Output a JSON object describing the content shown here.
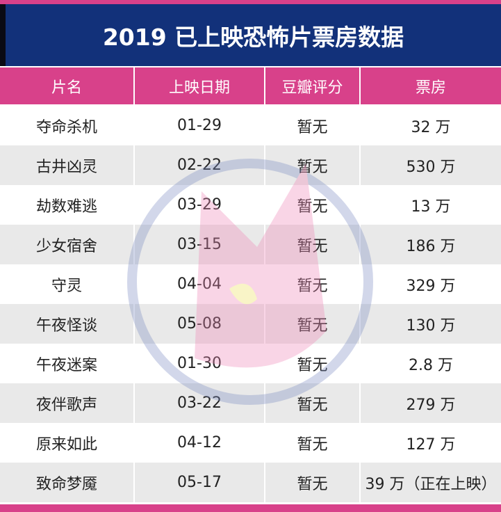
{
  "header": {
    "title": "2019 已上映恐怖片票房数据"
  },
  "table": {
    "columns": [
      "片名",
      "上映日期",
      "豆瓣评分",
      "票房"
    ],
    "rows": [
      [
        "夺命杀机",
        "01-29",
        "暂无",
        "32 万"
      ],
      [
        "古井凶灵",
        "02-22",
        "暂无",
        "530 万"
      ],
      [
        "劫数难逃",
        "03-29",
        "暂无",
        "13 万"
      ],
      [
        "少女宿舍",
        "03-15",
        "暂无",
        "186 万"
      ],
      [
        "守灵",
        "04-04",
        "暂无",
        "329 万"
      ],
      [
        "午夜怪谈",
        "05-08",
        "暂无",
        "130 万"
      ],
      [
        "午夜迷案",
        "01-30",
        "暂无",
        "2.8 万"
      ],
      [
        "夜伴歌声",
        "03-22",
        "暂无",
        "279 万"
      ],
      [
        "原来如此",
        "04-12",
        "暂无",
        "127 万"
      ],
      [
        "致命梦魇",
        "05-17",
        "暂无",
        "39 万（正在上映）"
      ]
    ]
  }
}
